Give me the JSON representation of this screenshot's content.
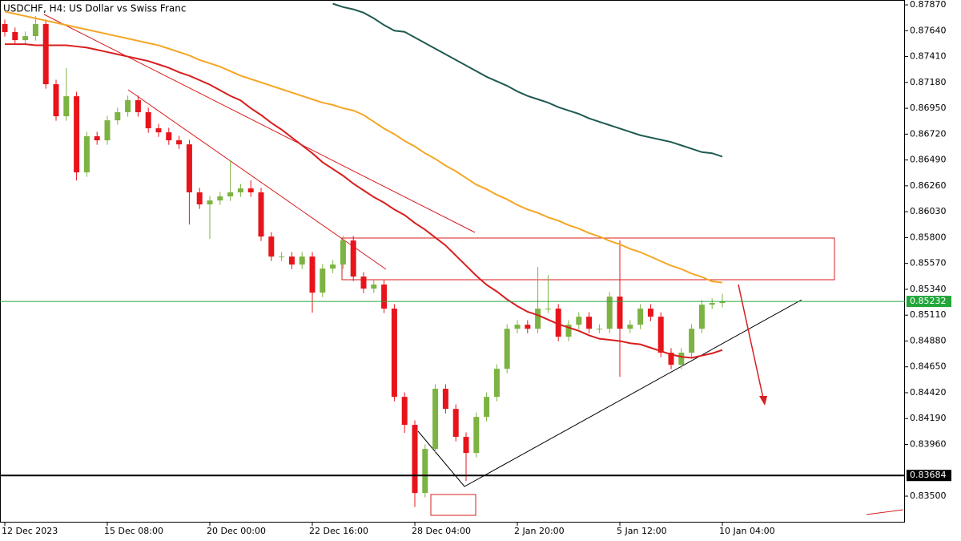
{
  "chart_data": {
    "type": "candlestick",
    "title": "USDCHF, H4:  US Dollar vs Swiss Franc",
    "categories": [
      "12 Dec 2023",
      null,
      null,
      null,
      null,
      null,
      null,
      null,
      null,
      null,
      "15 Dec 08:00",
      null,
      null,
      null,
      null,
      null,
      null,
      null,
      null,
      null,
      "20 Dec 00:00",
      null,
      null,
      null,
      null,
      null,
      null,
      null,
      null,
      null,
      "22 Dec 16:00",
      null,
      null,
      null,
      null,
      null,
      null,
      null,
      null,
      null,
      "28 Dec 04:00",
      null,
      null,
      null,
      null,
      null,
      null,
      null,
      null,
      null,
      "2 Jan 20:00",
      null,
      null,
      null,
      null,
      null,
      null,
      null,
      null,
      null,
      "5 Jan 12:00",
      null,
      null,
      null,
      null,
      null,
      null,
      null,
      null,
      null,
      "10 Jan 04:00"
    ],
    "open": [
      0.87699,
      0.87628,
      0.87556,
      0.87592,
      0.87699,
      0.87164,
      0.86879,
      0.87057,
      0.8638,
      0.86701,
      0.86665,
      0.86843,
      0.86915,
      0.87022,
      0.86915,
      0.86772,
      0.86736,
      0.86665,
      0.86629,
      0.86202,
      0.86095,
      0.8613,
      0.86166,
      0.86202,
      0.86237,
      0.86202,
      0.85809,
      0.85631,
      0.85631,
      0.8556,
      0.85631,
      0.8531,
      0.85524,
      0.8556,
      0.85774,
      0.85453,
      0.85346,
      0.85382,
      0.85168,
      0.84383,
      0.84134,
      0.83528,
      0.8392,
      0.84455,
      0.84276,
      0.84027,
      0.83884,
      0.84205,
      0.84383,
      0.84633,
      0.84989,
      0.85025,
      0.84989,
      0.85168,
      0.85168,
      0.84918,
      0.85025,
      0.85096,
      0.84989,
      0.84989,
      0.85275,
      0.84989,
      0.85025,
      0.85168,
      0.85096,
      0.84776,
      0.84669,
      0.84776,
      0.84989,
      0.85203,
      0.85218
    ],
    "high": [
      0.87739,
      0.87668,
      0.87632,
      0.8777,
      0.87739,
      0.87204,
      0.87307,
      0.87097,
      0.86741,
      0.86741,
      0.86883,
      0.86955,
      0.87062,
      0.87062,
      0.86955,
      0.86812,
      0.86776,
      0.86705,
      0.86669,
      0.86242,
      0.8617,
      0.86206,
      0.86487,
      0.86277,
      0.86308,
      0.86242,
      0.85849,
      0.85671,
      0.85671,
      0.85671,
      0.85671,
      0.85564,
      0.856,
      0.85814,
      0.85814,
      0.85493,
      0.85422,
      0.85422,
      0.85208,
      0.84423,
      0.84174,
      0.8396,
      0.84495,
      0.84495,
      0.84316,
      0.84067,
      0.84245,
      0.84423,
      0.84673,
      0.85029,
      0.85065,
      0.85065,
      0.85539,
      0.85467,
      0.85208,
      0.85065,
      0.85136,
      0.85136,
      0.85029,
      0.85315,
      0.85774,
      0.85065,
      0.85208,
      0.85208,
      0.85136,
      0.84816,
      0.84816,
      0.85029,
      0.85243,
      0.85258,
      0.853
    ],
    "low": [
      0.87588,
      0.87516,
      0.87516,
      0.87552,
      0.87124,
      0.86839,
      0.86839,
      0.86308,
      0.8634,
      0.86625,
      0.86625,
      0.86803,
      0.86875,
      0.86875,
      0.86732,
      0.86696,
      0.86625,
      0.86589,
      0.85916,
      0.86055,
      0.85788,
      0.8609,
      0.86126,
      0.86162,
      0.86162,
      0.85769,
      0.85591,
      0.85591,
      0.8552,
      0.8552,
      0.85132,
      0.8527,
      0.85484,
      0.8552,
      0.85413,
      0.85306,
      0.85306,
      0.85128,
      0.84343,
      0.84063,
      0.83404,
      0.83488,
      0.8388,
      0.84236,
      0.83987,
      0.83635,
      0.83844,
      0.84165,
      0.84343,
      0.84593,
      0.84949,
      0.84949,
      0.84949,
      0.85128,
      0.84878,
      0.84878,
      0.84985,
      0.84949,
      0.84949,
      0.84949,
      0.84561,
      0.84949,
      0.84985,
      0.85056,
      0.84736,
      0.84629,
      0.84629,
      0.84736,
      0.84949,
      0.85163,
      0.85178
    ],
    "close": [
      0.87628,
      0.87556,
      0.87592,
      0.87699,
      0.87164,
      0.86879,
      0.87057,
      0.8638,
      0.86701,
      0.86665,
      0.86843,
      0.86915,
      0.87022,
      0.86915,
      0.86772,
      0.86736,
      0.86665,
      0.86629,
      0.86202,
      0.86095,
      0.8613,
      0.86166,
      0.86202,
      0.86237,
      0.86202,
      0.85809,
      0.85631,
      0.85631,
      0.8556,
      0.85631,
      0.8531,
      0.85524,
      0.8556,
      0.85774,
      0.85453,
      0.85346,
      0.85382,
      0.85168,
      0.84383,
      0.84134,
      0.83528,
      0.8392,
      0.84455,
      0.84276,
      0.84027,
      0.83884,
      0.84205,
      0.84383,
      0.84633,
      0.84989,
      0.85025,
      0.84989,
      0.85168,
      0.85168,
      0.84918,
      0.85025,
      0.85096,
      0.84989,
      0.84989,
      0.85275,
      0.84989,
      0.85025,
      0.85168,
      0.85096,
      0.84776,
      0.84669,
      0.84776,
      0.84989,
      0.85203,
      0.85218,
      0.85232
    ],
    "up_color": "#7cb342",
    "down_color": "#e8141b",
    "overlays": [
      {
        "color": "#1f5a52",
        "values": [
          null,
          null,
          null,
          null,
          null,
          null,
          null,
          null,
          null,
          null,
          null,
          null,
          null,
          null,
          null,
          null,
          null,
          null,
          null,
          null,
          null,
          null,
          null,
          null,
          null,
          null,
          null,
          null,
          null,
          null,
          null,
          null,
          0.8788,
          0.8785,
          0.8783,
          0.878,
          0.8775,
          0.8769,
          0.8764,
          0.8763,
          0.8758,
          0.8753,
          0.8748,
          0.8743,
          0.8738,
          0.8733,
          0.8728,
          0.8723,
          0.8719,
          0.8715,
          0.871,
          0.8706,
          0.8703,
          0.87,
          0.8696,
          0.8693,
          0.869,
          0.8686,
          0.8683,
          0.868,
          0.8677,
          0.8674,
          0.8671,
          0.8669,
          0.8667,
          0.8665,
          0.8662,
          0.8659,
          0.8656,
          0.8655,
          0.8652
        ]
      },
      {
        "color": "#f5a623",
        "values": [
          0.8781,
          0.8779,
          0.8777,
          0.8775,
          0.8773,
          0.8771,
          0.8769,
          0.8767,
          0.8765,
          0.8763,
          0.8761,
          0.8759,
          0.8757,
          0.8755,
          0.8753,
          0.8751,
          0.8748,
          0.8745,
          0.8742,
          0.8738,
          0.8735,
          0.8732,
          0.8728,
          0.8724,
          0.8721,
          0.8718,
          0.8715,
          0.8712,
          0.8709,
          0.8706,
          0.8703,
          0.87,
          0.8698,
          0.8695,
          0.8693,
          0.8689,
          0.8683,
          0.8677,
          0.8672,
          0.8666,
          0.8661,
          0.8655,
          0.865,
          0.8644,
          0.8639,
          0.8633,
          0.8627,
          0.8623,
          0.8618,
          0.8614,
          0.8609,
          0.8605,
          0.8602,
          0.8598,
          0.8595,
          0.8591,
          0.8588,
          0.8584,
          0.8581,
          0.8577,
          0.8574,
          0.857,
          0.8567,
          0.8563,
          0.8559,
          0.8555,
          0.8552,
          0.8548,
          0.8545,
          0.8541,
          0.854
        ]
      },
      {
        "color": "#d81e1e",
        "values": [
          0.8752,
          0.8752,
          0.8752,
          0.8751,
          0.8751,
          0.8751,
          0.8751,
          0.875,
          0.8749,
          0.8747,
          0.8745,
          0.8743,
          0.8741,
          0.8739,
          0.8737,
          0.8734,
          0.8731,
          0.8727,
          0.8724,
          0.872,
          0.8716,
          0.8711,
          0.8706,
          0.8702,
          0.8695,
          0.8689,
          0.8682,
          0.8676,
          0.8669,
          0.8662,
          0.8655,
          0.8647,
          0.8641,
          0.8635,
          0.8628,
          0.8622,
          0.8616,
          0.8611,
          0.8605,
          0.86,
          0.8593,
          0.8587,
          0.858,
          0.8573,
          0.8564,
          0.8555,
          0.8546,
          0.8538,
          0.8532,
          0.8525,
          0.8519,
          0.8514,
          0.8511,
          0.8507,
          0.8503,
          0.85,
          0.8497,
          0.8493,
          0.849,
          0.8489,
          0.8488,
          0.8486,
          0.8485,
          0.8482,
          0.8479,
          0.8476,
          0.8474,
          0.8473,
          0.8475,
          0.8477,
          0.848
        ]
      }
    ],
    "price_lines": [
      {
        "value": 0.85232,
        "color": "#22a63a"
      },
      {
        "value": 0.83684,
        "color": "#000000"
      }
    ],
    "ylim": [
      0.83265,
      0.87913
    ],
    "yticks": [
      {
        "value": 0.8787,
        "label": "0.87870"
      },
      {
        "value": 0.8764,
        "label": "0.87640"
      },
      {
        "value": 0.8741,
        "label": "0.87410"
      },
      {
        "value": 0.8718,
        "label": "0.87180"
      },
      {
        "value": 0.8695,
        "label": "0.86950"
      },
      {
        "value": 0.8672,
        "label": "0.86720"
      },
      {
        "value": 0.8649,
        "label": "0.86490"
      },
      {
        "value": 0.8626,
        "label": "0.86260"
      },
      {
        "value": 0.8603,
        "label": "0.86030"
      },
      {
        "value": 0.858,
        "label": "0.85800"
      },
      {
        "value": 0.8557,
        "label": "0.85570"
      },
      {
        "value": 0.8534,
        "label": "0.85340"
      },
      {
        "value": 0.8511,
        "label": "0.85110"
      },
      {
        "value": 0.8488,
        "label": "0.84880"
      },
      {
        "value": 0.8465,
        "label": "0.84650"
      },
      {
        "value": 0.8442,
        "label": "0.84420"
      },
      {
        "value": 0.8419,
        "label": "0.84190"
      },
      {
        "value": 0.8396,
        "label": "0.83960"
      },
      {
        "value": 0.835,
        "label": "0.83500"
      }
    ]
  }
}
